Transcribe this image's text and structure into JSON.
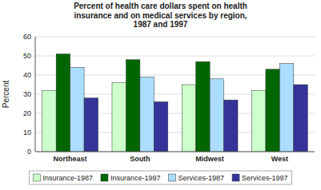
{
  "chart_data": {
    "type": "bar",
    "title": "Percent of health care dollars spent on health\ninsurance and on medical services by region,\n1987 and 1997",
    "categories": [
      "Northeast",
      "South",
      "Midwest",
      "West"
    ],
    "series": [
      {
        "name": "Insurance-1987",
        "color": "#ccffcc",
        "values": [
          32,
          36,
          35,
          32
        ]
      },
      {
        "name": "Insurance-1997",
        "color": "#006600",
        "values": [
          51,
          48,
          47,
          43
        ]
      },
      {
        "name": "Services-1987",
        "color": "#aaddff",
        "values": [
          44,
          39,
          38,
          46
        ]
      },
      {
        "name": "Services-1997",
        "color": "#333399",
        "values": [
          28,
          26,
          27,
          35
        ]
      }
    ],
    "ylabel": "Percent",
    "ylim": [
      0,
      60
    ],
    "yticks": [
      0,
      10,
      20,
      30,
      40,
      50,
      60
    ],
    "grid": true,
    "legend": "bottom"
  }
}
